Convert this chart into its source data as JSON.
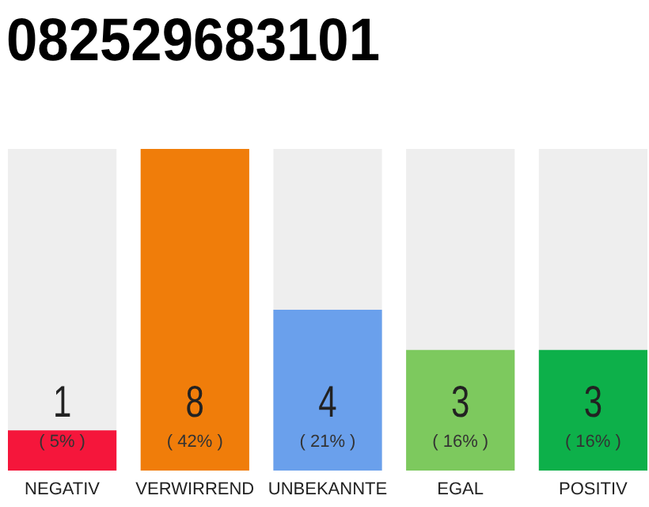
{
  "chart_data": {
    "type": "bar",
    "title": "082529683101",
    "categories": [
      "NEGATIV",
      "VERWIRREND",
      "UNBEKANNTE",
      "EGAL",
      "POSITIV"
    ],
    "values": [
      1,
      8,
      4,
      3,
      3
    ],
    "colors": [
      "#f5163b",
      "#f07d0a",
      "#6aa0ec",
      "#7dc95e",
      "#0db04a"
    ],
    "ylim": [
      0,
      8
    ],
    "data_labels": true,
    "tick_labels": "x",
    "annotations": [
      "( 5% )",
      "( 42% )",
      "( 21% )",
      "( 16% )",
      "( 16% )"
    ]
  }
}
